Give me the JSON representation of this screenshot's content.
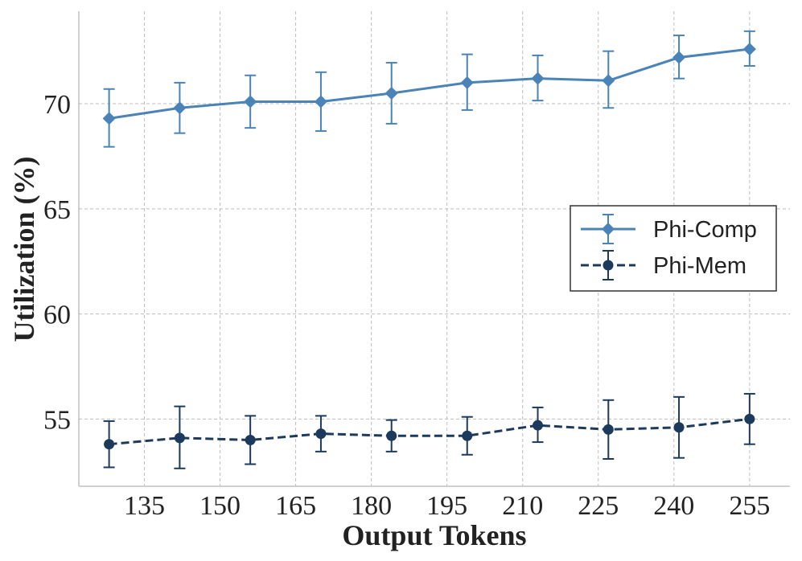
{
  "chart_data": {
    "type": "line",
    "title": "",
    "xlabel": "Output Tokens",
    "ylabel": "Utilization (%)",
    "xlim": [
      122,
      263
    ],
    "ylim": [
      51.8,
      74.4
    ],
    "xticks": [
      135,
      150,
      165,
      180,
      195,
      210,
      225,
      240,
      255
    ],
    "yticks": [
      55,
      60,
      65,
      70
    ],
    "grid": true,
    "legend_position": "center-right",
    "x": [
      128,
      142,
      156,
      170,
      184,
      199,
      213,
      227,
      241,
      255
    ],
    "series": [
      {
        "name": "Phi-Comp",
        "color": "#4a83b8",
        "linestyle": "solid",
        "marker": "diamond",
        "values": [
          69.3,
          69.8,
          70.1,
          70.1,
          70.5,
          71.0,
          71.2,
          71.1,
          72.2,
          72.6
        ],
        "err_low": [
          1.35,
          1.2,
          1.25,
          1.4,
          1.45,
          1.3,
          1.05,
          1.3,
          1.0,
          0.8
        ],
        "err_high": [
          1.4,
          1.2,
          1.25,
          1.4,
          1.45,
          1.35,
          1.1,
          1.4,
          1.05,
          0.85
        ]
      },
      {
        "name": "Phi-Mem",
        "color": "#1c3a5c",
        "linestyle": "dashed",
        "marker": "circle",
        "values": [
          53.8,
          54.1,
          54.0,
          54.3,
          54.2,
          54.2,
          54.7,
          54.5,
          54.6,
          55.0
        ],
        "err_low": [
          1.1,
          1.45,
          1.15,
          0.85,
          0.75,
          0.9,
          0.8,
          1.4,
          1.45,
          1.2
        ],
        "err_high": [
          1.1,
          1.5,
          1.15,
          0.85,
          0.75,
          0.9,
          0.85,
          1.4,
          1.45,
          1.2
        ]
      }
    ]
  }
}
